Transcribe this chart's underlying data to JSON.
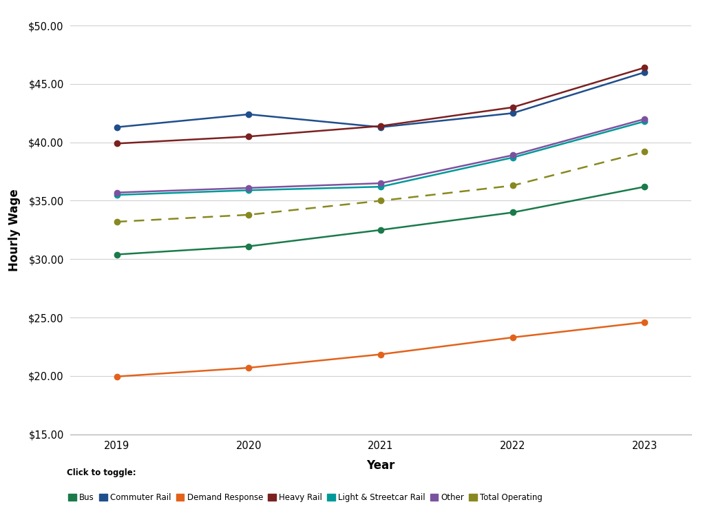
{
  "years": [
    2019,
    2020,
    2021,
    2022,
    2023
  ],
  "series": [
    {
      "name": "Bus",
      "values": [
        30.4,
        31.1,
        32.5,
        34.0,
        36.2
      ],
      "color": "#1a7a4a",
      "linestyle": "solid"
    },
    {
      "name": "Commuter Rail",
      "values": [
        41.3,
        42.4,
        41.3,
        42.5,
        46.0
      ],
      "color": "#1f4e8c",
      "linestyle": "solid"
    },
    {
      "name": "Demand Response",
      "values": [
        19.95,
        20.7,
        21.85,
        23.3,
        24.6
      ],
      "color": "#e2621b",
      "linestyle": "solid"
    },
    {
      "name": "Heavy Rail",
      "values": [
        39.9,
        40.5,
        41.4,
        43.0,
        46.4
      ],
      "color": "#7b2020",
      "linestyle": "solid"
    },
    {
      "name": "Light & Streetcar Rail",
      "values": [
        35.5,
        35.9,
        36.2,
        38.7,
        41.8
      ],
      "color": "#009999",
      "linestyle": "solid"
    },
    {
      "name": "Other",
      "values": [
        35.7,
        36.1,
        36.5,
        38.9,
        42.0
      ],
      "color": "#7b52a0",
      "linestyle": "solid"
    },
    {
      "name": "Total Operating",
      "values": [
        33.2,
        33.8,
        35.0,
        36.3,
        39.2
      ],
      "color": "#888820",
      "linestyle": "dashed"
    }
  ],
  "xlabel": "Year",
  "ylabel": "Hourly Wage",
  "ylim": [
    15.0,
    50.0
  ],
  "yticks": [
    15.0,
    20.0,
    25.0,
    30.0,
    35.0,
    40.0,
    45.0,
    50.0
  ],
  "background_color": "#ffffff",
  "grid_color": "#d0d0d0",
  "legend_prefix": "Click to toggle:",
  "title": ""
}
